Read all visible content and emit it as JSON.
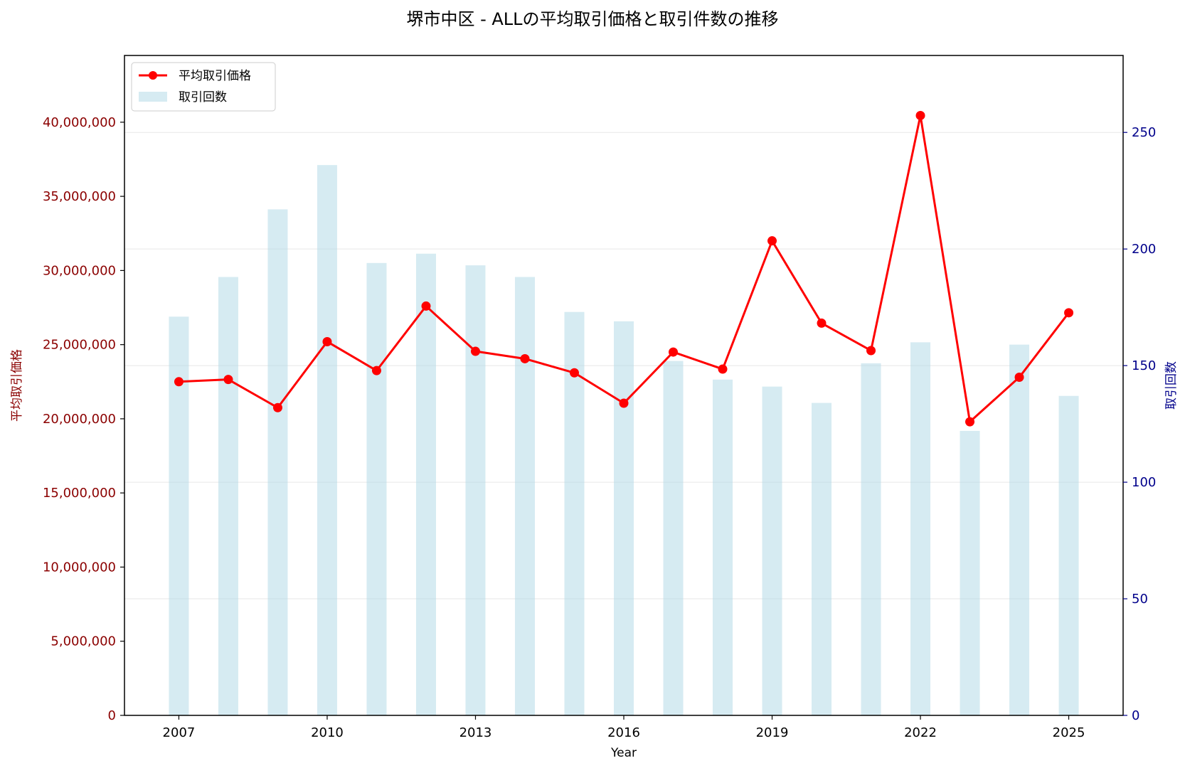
{
  "chart_data": {
    "type": "bar",
    "title": "堺市中区 - ALLの平均取引価格と取引件数の推移",
    "xlabel": "Year",
    "ylabel_left": "平均取引価格",
    "ylabel_right": "取引回数",
    "x": [
      2007,
      2008,
      2009,
      2010,
      2011,
      2012,
      2013,
      2014,
      2015,
      2016,
      2017,
      2018,
      2019,
      2020,
      2021,
      2022,
      2023,
      2024,
      2025
    ],
    "x_ticks": [
      "2007",
      "2010",
      "2013",
      "2016",
      "2019",
      "2022",
      "2025"
    ],
    "y_left_ticks": [
      "0",
      "5,000,000",
      "10,000,000",
      "15,000,000",
      "20,000,000",
      "25,000,000",
      "30,000,000",
      "35,000,000",
      "40,000,000"
    ],
    "y_right_ticks": [
      "0",
      "50",
      "100",
      "150",
      "200",
      "250"
    ],
    "ylim_left": [
      0,
      44500000
    ],
    "ylim_right": [
      0,
      283
    ],
    "grid": "horizontal (right axis)",
    "legend_position": "upper-left",
    "series": [
      {
        "name": "平均取引価格",
        "kind": "line",
        "axis": "left",
        "color": "#ff0000",
        "values": [
          22500000,
          22650000,
          20750000,
          25200000,
          23250000,
          27600000,
          24550000,
          24050000,
          23100000,
          21050000,
          24500000,
          23350000,
          32000000,
          26450000,
          24600000,
          40450000,
          19800000,
          22800000,
          27150000
        ]
      },
      {
        "name": "取引回数",
        "kind": "bar",
        "axis": "right",
        "color": "#add8e6",
        "values": [
          171,
          188,
          217,
          236,
          194,
          198,
          193,
          188,
          173,
          169,
          152,
          144,
          141,
          134,
          151,
          160,
          122,
          159,
          137
        ]
      }
    ]
  }
}
